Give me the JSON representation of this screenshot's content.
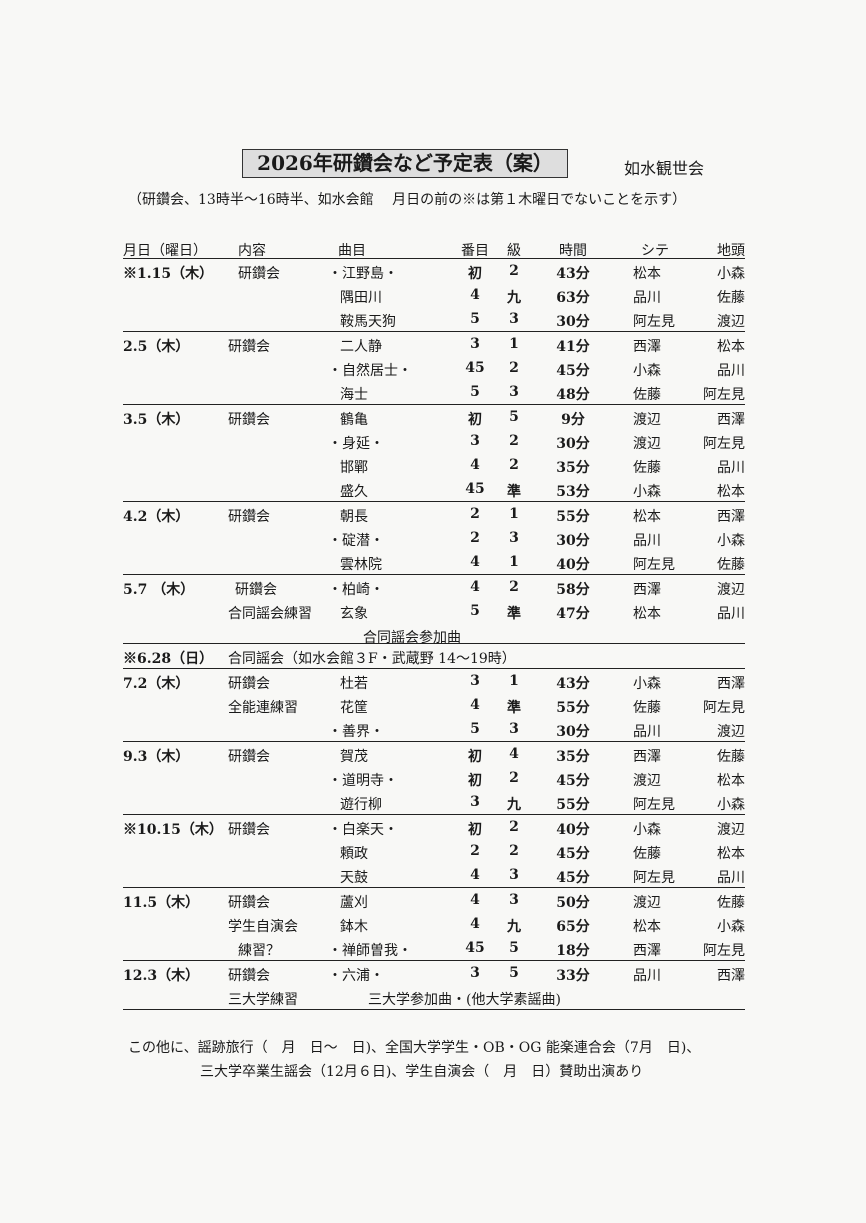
{
  "title": "2026年研鑽会など予定表（案）",
  "organization": "如水観世会",
  "subtitle": "（研鑽会、13時半〜16時半、如水会館　 月日の前の※は第１木曜日でないことを示す）",
  "headers": {
    "date": "月日（曜日）",
    "content": "内容",
    "piece": "曲目",
    "number": "番目",
    "grade": "級",
    "time": "時間",
    "shite": "シテ",
    "jigashira": "地頭"
  },
  "groups": [
    {
      "date": "※1.15（木）",
      "rows": [
        {
          "content": "研鑽会",
          "piece": "・江野島・",
          "number": "初",
          "grade": "2",
          "time": "43分",
          "shite": "松本",
          "jigashira": "小森"
        },
        {
          "content": "",
          "piece": "隅田川",
          "number": "4",
          "grade": "九",
          "time": "63分",
          "shite": "品川",
          "jigashira": "佐藤"
        },
        {
          "content": "",
          "piece": "鞍馬天狗",
          "number": "5",
          "grade": "3",
          "time": "30分",
          "shite": "阿左見",
          "jigashira": "渡辺"
        }
      ]
    },
    {
      "date": "2.5（木）",
      "rows": [
        {
          "content": "研鑽会",
          "piece": "二人静",
          "number": "3",
          "grade": "1",
          "time": "41分",
          "shite": "西澤",
          "jigashira": "松本"
        },
        {
          "content": "",
          "piece": "・自然居士・",
          "number": "45",
          "grade": "2",
          "time": "45分",
          "shite": "小森",
          "jigashira": "品川"
        },
        {
          "content": "",
          "piece": "海士",
          "number": "5",
          "grade": "3",
          "time": "48分",
          "shite": "佐藤",
          "jigashira": "阿左見"
        }
      ]
    },
    {
      "date": "3.5（木）",
      "rows": [
        {
          "content": "研鑽会",
          "piece": "鶴亀",
          "number": "初",
          "grade": "5",
          "time": "9分",
          "shite": "渡辺",
          "jigashira": "西澤"
        },
        {
          "content": "",
          "piece": "・身延・",
          "number": "3",
          "grade": "2",
          "time": "30分",
          "shite": "渡辺",
          "jigashira": "阿左見"
        },
        {
          "content": "",
          "piece": "邯鄲",
          "number": "4",
          "grade": "2",
          "time": "35分",
          "shite": "佐藤",
          "jigashira": "品川"
        },
        {
          "content": "",
          "piece": "盛久",
          "number": "45",
          "grade": "準",
          "time": "53分",
          "shite": "小森",
          "jigashira": "松本"
        }
      ]
    },
    {
      "date": "4.2（木）",
      "rows": [
        {
          "content": "研鑽会",
          "piece": "朝長",
          "number": "2",
          "grade": "1",
          "time": "55分",
          "shite": "松本",
          "jigashira": "西澤"
        },
        {
          "content": "",
          "piece": "・碇潜・",
          "number": "2",
          "grade": "3",
          "time": "30分",
          "shite": "品川",
          "jigashira": "小森"
        },
        {
          "content": "",
          "piece": "雲林院",
          "number": "4",
          "grade": "1",
          "time": "40分",
          "shite": "阿左見",
          "jigashira": "佐藤"
        }
      ]
    },
    {
      "date": "5.7 （木）",
      "rows": [
        {
          "content": "研鑽会",
          "piece": "・柏崎・",
          "number": "4",
          "grade": "2",
          "time": "58分",
          "shite": "西澤",
          "jigashira": "渡辺"
        },
        {
          "content": "合同謡会練習",
          "piece": "玄象",
          "number": "5",
          "grade": "準",
          "time": "47分",
          "shite": "松本",
          "jigashira": "品川"
        }
      ],
      "note": "合同謡会参加曲"
    },
    {
      "date": "※6.28（日）",
      "wide": "合同謡会（如水会館３F・武蔵野 14〜19時）",
      "rows": []
    },
    {
      "date": "7.2（木）",
      "rows": [
        {
          "content": "研鑽会",
          "piece": "杜若",
          "number": "3",
          "grade": "1",
          "time": "43分",
          "shite": "小森",
          "jigashira": "西澤"
        },
        {
          "content": "全能連練習",
          "piece": "花筐",
          "number": "4",
          "grade": "準",
          "time": "55分",
          "shite": "佐藤",
          "jigashira": "阿左見"
        },
        {
          "content": "",
          "piece": "・善界・",
          "number": "5",
          "grade": "3",
          "time": "30分",
          "shite": "品川",
          "jigashira": "渡辺"
        }
      ]
    },
    {
      "date": "9.3（木）",
      "rows": [
        {
          "content": "研鑽会",
          "piece": "賀茂",
          "number": "初",
          "grade": "4",
          "time": "35分",
          "shite": "西澤",
          "jigashira": "佐藤"
        },
        {
          "content": "",
          "piece": "・道明寺・",
          "number": "初",
          "grade": "2",
          "time": "45分",
          "shite": "渡辺",
          "jigashira": "松本"
        },
        {
          "content": "",
          "piece": "遊行柳",
          "number": "3",
          "grade": "九",
          "time": "55分",
          "shite": "阿左見",
          "jigashira": "小森"
        }
      ]
    },
    {
      "date": "※10.15（木）",
      "rows": [
        {
          "content": "研鑽会",
          "piece": "・白楽天・",
          "number": "初",
          "grade": "2",
          "time": "40分",
          "shite": "小森",
          "jigashira": "渡辺"
        },
        {
          "content": "",
          "piece": "頼政",
          "number": "2",
          "grade": "2",
          "time": "45分",
          "shite": "佐藤",
          "jigashira": "松本"
        },
        {
          "content": "",
          "piece": "天鼓",
          "number": "4",
          "grade": "3",
          "time": "45分",
          "shite": "阿左見",
          "jigashira": "品川"
        }
      ]
    },
    {
      "date": "11.5（木）",
      "rows": [
        {
          "content": "研鑽会",
          "piece": "蘆刈",
          "number": "4",
          "grade": "3",
          "time": "50分",
          "shite": "渡辺",
          "jigashira": "佐藤"
        },
        {
          "content": "学生自演会",
          "piece": "鉢木",
          "number": "4",
          "grade": "九",
          "time": "65分",
          "shite": "松本",
          "jigashira": "小森"
        },
        {
          "content": "練習？",
          "piece": "・禅師曽我・",
          "number": "45",
          "grade": "5",
          "time": "18分",
          "shite": "西澤",
          "jigashira": "阿左見"
        }
      ]
    },
    {
      "date": "12.3（木）",
      "rows": [
        {
          "content": "研鑽会",
          "piece": "・六浦・",
          "number": "3",
          "grade": "5",
          "time": "33分",
          "shite": "品川",
          "jigashira": "西澤"
        },
        {
          "content": "三大学練習",
          "piece": "三大学参加曲・(他大学素謡曲)",
          "number": "",
          "grade": "",
          "time": "",
          "shite": "",
          "jigashira": ""
        }
      ]
    }
  ],
  "footer": {
    "line1": "この他に、謡跡旅行（　月　日〜　日)、全国大学学生・OB・OG 能楽連合会（7月　日)、",
    "line2": "三大学卒業生謡会（12月６日)、学生自演会（　月　日）賛助出演あり"
  }
}
